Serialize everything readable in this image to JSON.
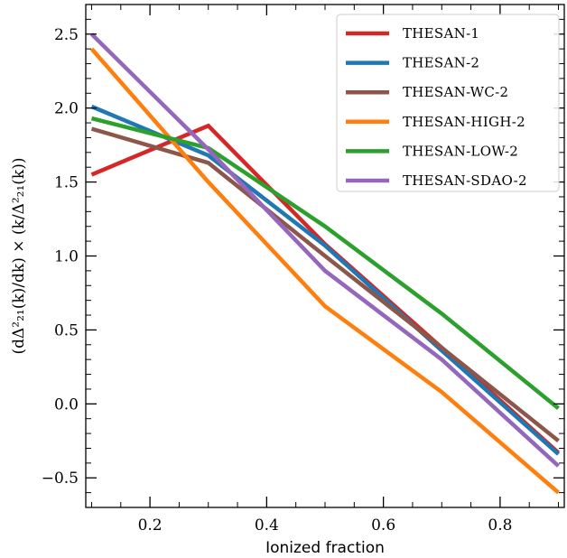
{
  "chart_data": {
    "type": "line",
    "xlabel": "Ionized fraction",
    "ylabel": "(dΔ²₂₁(k)/dk) × (k/Δ²₂₁(k))",
    "xlim": [
      0.09,
      0.91
    ],
    "ylim": [
      -0.7,
      2.7
    ],
    "xticks": [
      0.2,
      0.4,
      0.6,
      0.8
    ],
    "xtick_labels": [
      "0.2",
      "0.4",
      "0.6",
      "0.8"
    ],
    "yticks": [
      -0.5,
      0.0,
      0.5,
      1.0,
      1.5,
      2.0,
      2.5
    ],
    "ytick_labels": [
      "−0.5",
      "0.0",
      "0.5",
      "1.0",
      "1.5",
      "2.0",
      "2.5"
    ],
    "grid": false,
    "legend_position": "top-right",
    "x": [
      0.1,
      0.3,
      0.5,
      0.7,
      0.9
    ],
    "series": [
      {
        "name": "THESAN-1",
        "color": "#d62728",
        "values": [
          1.55,
          1.88,
          1.08,
          0.38,
          -0.33
        ]
      },
      {
        "name": "THESAN-2",
        "color": "#1f77b4",
        "values": [
          2.01,
          1.68,
          1.07,
          0.36,
          -0.34
        ]
      },
      {
        "name": "THESAN-WC-2",
        "color": "#8c564b",
        "values": [
          1.86,
          1.63,
          1.0,
          0.38,
          -0.25
        ]
      },
      {
        "name": "THESAN-HIGH-2",
        "color": "#ff7f0e",
        "values": [
          2.4,
          1.5,
          0.66,
          0.08,
          -0.6
        ]
      },
      {
        "name": "THESAN-LOW-2",
        "color": "#2ca02c",
        "values": [
          1.93,
          1.73,
          1.2,
          0.61,
          -0.03
        ]
      },
      {
        "name": "THESAN-SDAO-2",
        "color": "#9467bd",
        "values": [
          2.5,
          1.72,
          0.9,
          0.3,
          -0.42
        ]
      }
    ]
  }
}
